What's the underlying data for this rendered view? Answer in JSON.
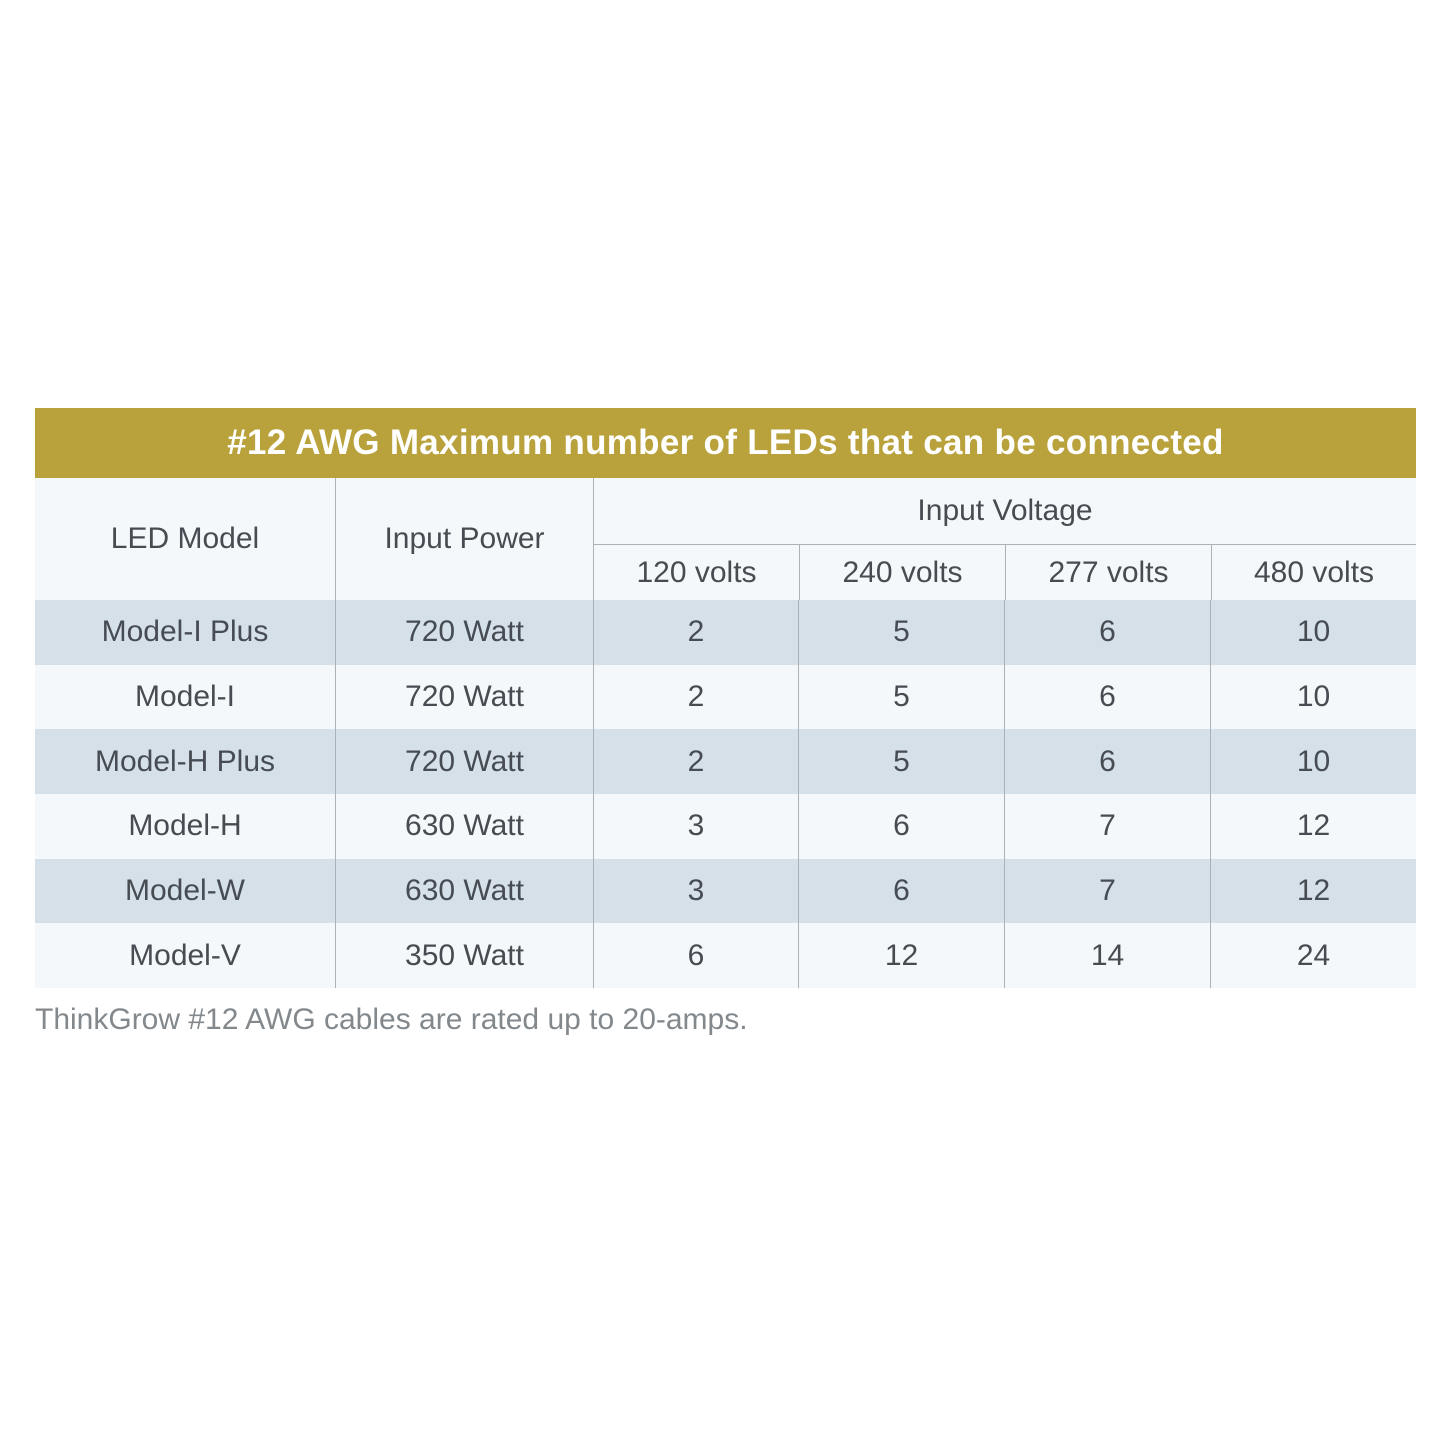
{
  "chart_data": {
    "type": "table",
    "title": "#12 AWG Maximum number of LEDs that can be connected",
    "column_group_label": "Input Voltage",
    "columns": [
      "LED Model",
      "Input Power",
      "120 volts",
      "240 volts",
      "277 volts",
      "480 volts"
    ],
    "rows": [
      [
        "Model-I Plus",
        "720 Watt",
        2,
        5,
        6,
        10
      ],
      [
        "Model-I",
        "720 Watt",
        2,
        5,
        6,
        10
      ],
      [
        "Model-H Plus",
        "720 Watt",
        2,
        5,
        6,
        10
      ],
      [
        "Model-H",
        "630 Watt",
        3,
        6,
        7,
        12
      ],
      [
        "Model-W",
        "630 Watt",
        3,
        6,
        7,
        12
      ],
      [
        "Model-V",
        "350 Watt",
        6,
        12,
        14,
        24
      ]
    ],
    "footnote": "ThinkGrow #12 AWG cables are rated up to 20-amps."
  },
  "title": "#12 AWG Maximum number of LEDs that can be connected",
  "header": {
    "model": "LED Model",
    "power": "Input Power",
    "voltage_group": "Input Voltage",
    "voltages": [
      "120 volts",
      "240 volts",
      "277 volts",
      "480 volts"
    ]
  },
  "rows": [
    {
      "model": "Model-I Plus",
      "power": "720 Watt",
      "values": [
        "2",
        "5",
        "6",
        "10"
      ]
    },
    {
      "model": "Model-I",
      "power": "720 Watt",
      "values": [
        "2",
        "5",
        "6",
        "10"
      ]
    },
    {
      "model": "Model-H Plus",
      "power": "720 Watt",
      "values": [
        "2",
        "5",
        "6",
        "10"
      ]
    },
    {
      "model": "Model-H",
      "power": "630 Watt",
      "values": [
        "3",
        "6",
        "7",
        "12"
      ]
    },
    {
      "model": "Model-W",
      "power": "630 Watt",
      "values": [
        "3",
        "6",
        "7",
        "12"
      ]
    },
    {
      "model": "Model-V",
      "power": "350 Watt",
      "values": [
        "6",
        "12",
        "14",
        "24"
      ]
    }
  ],
  "footer": {
    "note": "ThinkGrow #12 AWG cables are rated up to 20-amps."
  },
  "colors": {
    "gold": "#b9a23c",
    "stripe_blue": "#d5e0e9",
    "stripe_light": "#f4f8fa",
    "border": "#aab2b8",
    "text": "#464c52",
    "footer_text": "#82888c",
    "title_text": "#ffffff"
  }
}
